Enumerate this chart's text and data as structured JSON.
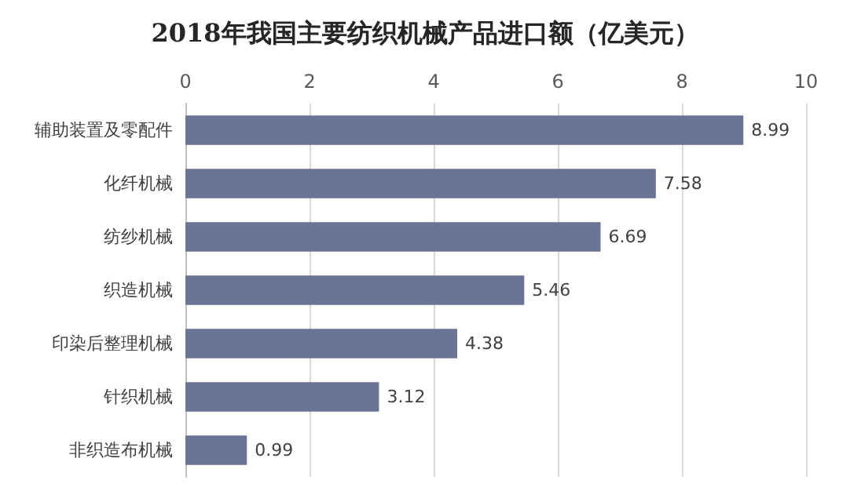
{
  "chart_data": {
    "type": "bar",
    "orientation": "horizontal",
    "title": "2018年我国主要纺织机械产品进口额（亿美元）",
    "categories": [
      "辅助装置及零配件",
      "化纤机械",
      "纺纱机械",
      "织造机械",
      "印染后整理机械",
      "针织机械",
      "非织造布机械"
    ],
    "values": [
      8.99,
      7.58,
      6.69,
      5.46,
      4.38,
      3.12,
      0.99
    ],
    "color": "#6a7596",
    "xlim": [
      0,
      10
    ],
    "xticks": [
      0,
      2,
      4,
      6,
      8,
      10
    ],
    "grid": "x",
    "data_labels": true
  }
}
